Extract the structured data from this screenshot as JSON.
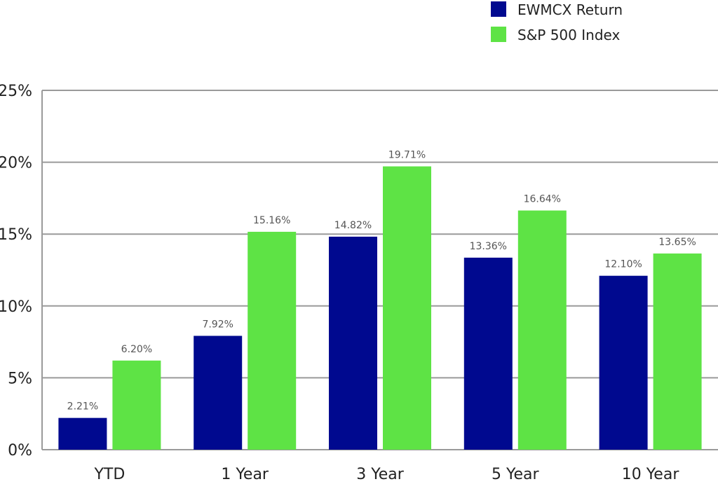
{
  "chart_data": {
    "type": "bar",
    "title": "",
    "xlabel": "",
    "ylabel": "",
    "categories": [
      "YTD",
      "1 Year",
      "3 Year",
      "5 Year",
      "10 Year"
    ],
    "series": [
      {
        "name": "EWMCX Return",
        "color": "#00098f",
        "values": [
          2.21,
          7.92,
          14.82,
          13.36,
          12.1
        ],
        "labels": [
          "2.21%",
          "7.92%",
          "14.82%",
          "13.36%",
          "12.10%"
        ]
      },
      {
        "name": "S&P 500 Index",
        "color": "#5ee345",
        "values": [
          6.2,
          15.16,
          19.71,
          16.64,
          13.65
        ],
        "labels": [
          "6.20%",
          "15.16%",
          "19.71%",
          "16.64%",
          "13.65%"
        ]
      }
    ],
    "ylim": [
      0,
      25
    ],
    "yticks": [
      0,
      5,
      10,
      15,
      20,
      25
    ],
    "ytick_labels": [
      "0%",
      "5%",
      "10%",
      "15%",
      "20%",
      "25%"
    ],
    "grid": true,
    "legend_position": "top-right"
  }
}
